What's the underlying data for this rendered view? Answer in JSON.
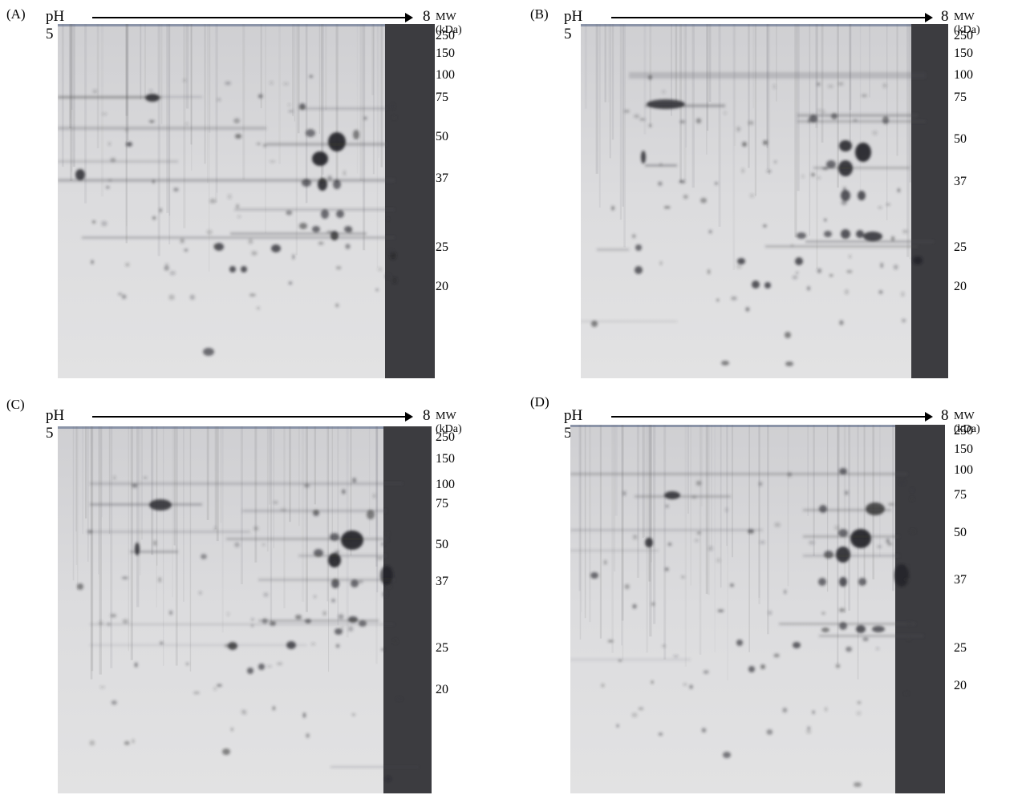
{
  "panels": [
    {
      "id": "A",
      "label": "(A)",
      "ph_start": "pH 5",
      "ph_end": "8",
      "mw_title": "MW (kDa)",
      "markers": [
        "250",
        "150",
        "100",
        "75",
        "50",
        "37",
        "25",
        "20"
      ]
    },
    {
      "id": "B",
      "label": "(B)",
      "ph_start": "pH 5",
      "ph_end": "8",
      "mw_title": "MW (kDa)",
      "markers": [
        "250",
        "150",
        "100",
        "75",
        "50",
        "37",
        "25",
        "20"
      ]
    },
    {
      "id": "C",
      "label": "(C)",
      "ph_start": "pH 5",
      "ph_end": "8",
      "mw_title": "MW (kDa)",
      "markers": [
        "250",
        "150",
        "100",
        "75",
        "50",
        "37",
        "25",
        "20"
      ]
    },
    {
      "id": "D",
      "label": "(D)",
      "ph_start": "pH 5",
      "ph_end": "8",
      "mw_title": "MW (kDa)",
      "markers": [
        "250",
        "150",
        "100",
        "75",
        "50",
        "37",
        "25",
        "20"
      ]
    }
  ],
  "colors": {
    "gel_background": "#dcdcdc",
    "spot": "#1e1e1e",
    "band": "#4a4a4a"
  }
}
